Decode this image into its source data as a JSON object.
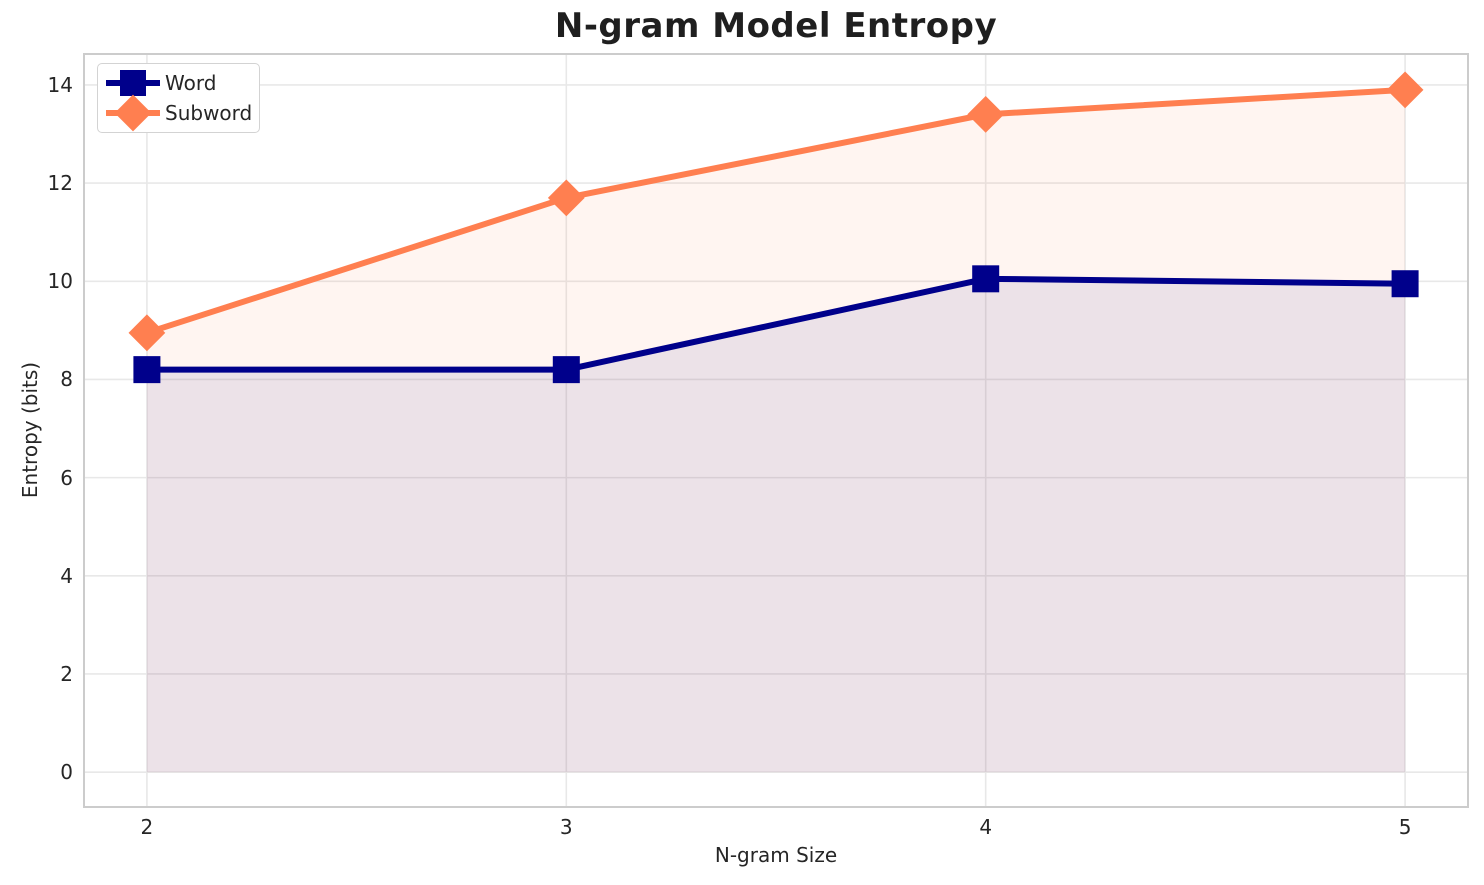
{
  "chart_data": {
    "type": "line",
    "title": "N-gram Model Entropy",
    "xlabel": "N-gram Size",
    "ylabel": "Entropy (bits)",
    "x": [
      2,
      3,
      4,
      5
    ],
    "series": [
      {
        "name": "Word",
        "marker": "square",
        "color": "#00008b",
        "values": [
          8.2,
          8.2,
          10.05,
          9.95
        ]
      },
      {
        "name": "Subword",
        "marker": "diamond",
        "color": "#ff7f50",
        "values": [
          8.95,
          11.7,
          13.4,
          13.9
        ]
      }
    ],
    "fill_to_zero": true,
    "fill_opacity": 0.08,
    "xticks": [
      "2",
      "3",
      "4",
      "5"
    ],
    "xtick_values": [
      2,
      3,
      4,
      5
    ],
    "yticks": [
      "0",
      "2",
      "4",
      "6",
      "8",
      "10",
      "12",
      "14"
    ],
    "ytick_values": [
      0,
      2,
      4,
      6,
      8,
      10,
      12,
      14
    ],
    "xlim": [
      1.85,
      5.15
    ],
    "ylim": [
      -0.71,
      14.63
    ],
    "grid": true,
    "legend_position": "upper left",
    "grid_color": "#e8e8e8",
    "spine_color": "#cccccc",
    "text_color": "#262626",
    "line_width": 6
  }
}
